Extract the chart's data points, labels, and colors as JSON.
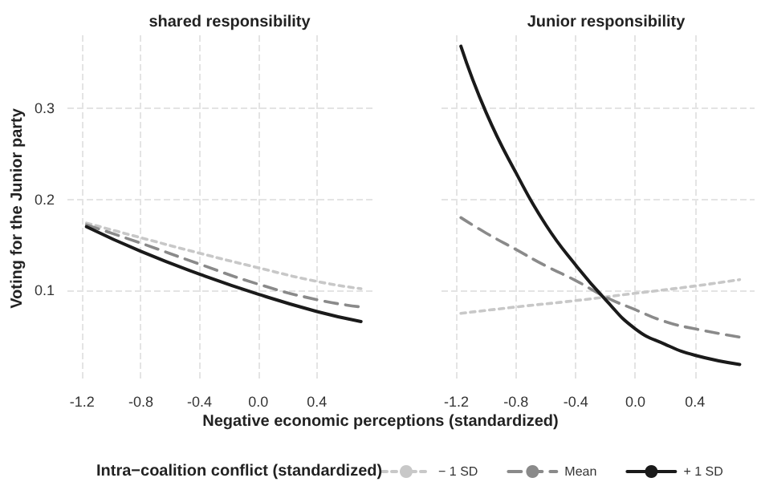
{
  "chart_data": [
    {
      "type": "line",
      "title": "shared responsibility",
      "ylabel": "Voting for the Junior party",
      "xlabel": "Negative economic perceptions (standardized)",
      "legend_title": "Intra−coalition conflict (standardized)",
      "legend": "bottom",
      "grid": true,
      "xlim": [
        -1.3,
        0.8
      ],
      "ylim": [
        0,
        0.38
      ],
      "xticks": [
        -1.2,
        -0.8,
        -0.4,
        {
          "value": 0,
          "label": "0.0"
        },
        0.4
      ],
      "yticks": [
        0.1,
        0.2,
        0.3
      ],
      "series": [
        {
          "name": "− 1 SD",
          "color": "#c8c8c8",
          "line_style": "dotted",
          "x": [
            -1.17,
            -0.8,
            -0.4,
            0,
            0.4,
            0.7
          ],
          "values": [
            0.174,
            0.158,
            0.141,
            0.125,
            0.11,
            0.102
          ]
        },
        {
          "name": "Mean",
          "color": "#8a8a8a",
          "line_style": "dashed",
          "x": [
            -1.17,
            -0.8,
            -0.4,
            0,
            0.4,
            0.7
          ],
          "values": [
            0.172,
            0.152,
            0.129,
            0.107,
            0.09,
            0.082
          ]
        },
        {
          "name": "+ 1 SD",
          "color": "#1a1a1a",
          "line_style": "solid",
          "x": [
            -1.17,
            -0.8,
            -0.4,
            0,
            0.4,
            0.7
          ],
          "values": [
            0.17,
            0.143,
            0.118,
            0.096,
            0.077,
            0.066
          ]
        }
      ]
    },
    {
      "type": "line",
      "title": "Junior responsibility",
      "grid": true,
      "tick_labels": "x",
      "xlim": [
        -1.3,
        0.8
      ],
      "ylim": [
        0,
        0.38
      ],
      "xticks": [
        -1.2,
        -0.8,
        -0.4,
        {
          "value": 0,
          "label": "0.0"
        },
        0.4
      ],
      "yticks": [
        0.1,
        0.2,
        0.3
      ],
      "series": [
        {
          "color": "#c8c8c8",
          "line_style": "dotted",
          "x": [
            -1.17,
            -0.8,
            -0.4,
            0,
            0.4,
            0.7
          ],
          "values": [
            0.075,
            0.082,
            0.089,
            0.097,
            0.105,
            0.112
          ]
        },
        {
          "color": "#8a8a8a",
          "line_style": "dashed",
          "x": [
            -1.17,
            -1.0,
            -0.8,
            -0.6,
            -0.4,
            -0.2,
            0,
            0.2,
            0.4,
            0.7
          ],
          "values": [
            0.18,
            0.163,
            0.145,
            0.127,
            0.111,
            0.093,
            0.079,
            0.066,
            0.058,
            0.049
          ]
        },
        {
          "color": "#1a1a1a",
          "line_style": "solid",
          "x": [
            -1.17,
            -1.0,
            -0.8,
            -0.6,
            -0.4,
            -0.2,
            0,
            0.2,
            0.4,
            0.7
          ],
          "values": [
            0.368,
            0.295,
            0.229,
            0.172,
            0.128,
            0.09,
            0.058,
            0.041,
            0.029,
            0.019
          ]
        }
      ]
    }
  ]
}
